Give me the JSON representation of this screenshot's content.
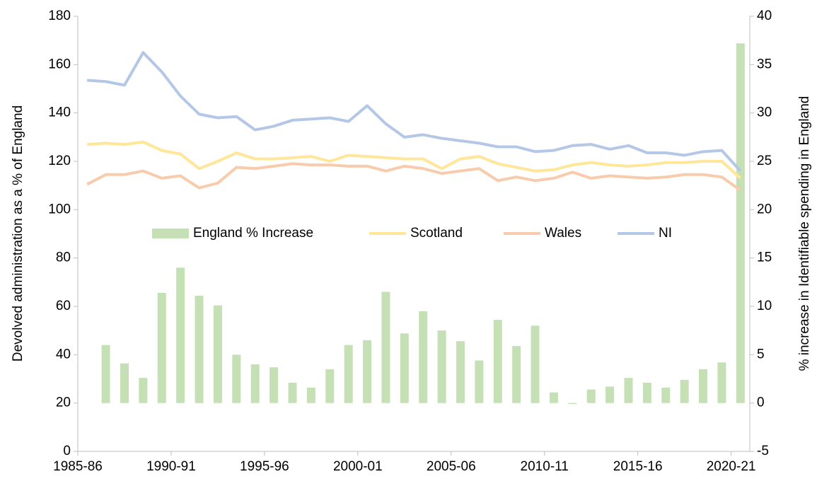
{
  "chart_data": {
    "type": "bar-line",
    "y_label": "Devolved administration as a % of England",
    "y2_label": "% increase in Identifiable spending in England",
    "categories": [
      "1985-86",
      null,
      null,
      null,
      null,
      "1990-91",
      null,
      null,
      null,
      null,
      "1995-96",
      null,
      null,
      null,
      null,
      "2000-01",
      null,
      null,
      null,
      null,
      "2005-06",
      null,
      null,
      null,
      null,
      "2010-11",
      null,
      null,
      null,
      null,
      "2015-16",
      null,
      null,
      null,
      null,
      "2020-21"
    ],
    "ylim": [
      0,
      180
    ],
    "yticks": [
      0,
      20,
      40,
      60,
      80,
      100,
      120,
      140,
      160,
      180
    ],
    "y2lim": [
      -5,
      40
    ],
    "y2ticks": [
      -5,
      0,
      5,
      10,
      15,
      20,
      25,
      30,
      35,
      40
    ],
    "legend": "center",
    "series": [
      {
        "name": "England % Increase",
        "type": "bar",
        "axis": "y2",
        "color": "#c5e0b4",
        "values": [
          null,
          6.0,
          4.1,
          2.6,
          11.4,
          14.0,
          11.1,
          10.1,
          5.0,
          4.0,
          3.7,
          2.1,
          1.6,
          3.5,
          6.0,
          6.5,
          11.5,
          7.2,
          9.5,
          7.5,
          6.4,
          4.4,
          8.6,
          5.9,
          8.0,
          1.1,
          -0.1,
          1.4,
          1.7,
          2.6,
          2.1,
          1.6,
          2.4,
          3.5,
          4.2,
          37.2
        ]
      },
      {
        "name": "Scotland",
        "type": "line",
        "color": "#ffe699",
        "values": [
          127,
          127.5,
          127,
          128,
          124.5,
          123,
          117,
          120,
          123.5,
          121,
          121,
          121.5,
          122,
          120,
          122.5,
          122,
          121.5,
          121,
          121,
          117,
          121,
          122,
          119,
          117.5,
          116,
          116.5,
          118.5,
          119.5,
          118.5,
          118,
          118.5,
          119.5,
          119.5,
          120,
          120,
          113
        ]
      },
      {
        "name": "Wales",
        "type": "line",
        "color": "#f8cbad",
        "values": [
          110.5,
          114.5,
          114.5,
          116,
          113,
          114,
          109,
          111,
          117.5,
          117,
          118,
          119,
          118.5,
          118.5,
          118,
          118,
          116,
          118,
          117,
          115,
          116,
          117,
          112,
          113.5,
          112,
          113,
          115.5,
          113,
          114,
          113.5,
          113,
          113.5,
          114.5,
          114.5,
          113.5,
          108
        ]
      },
      {
        "name": "NI",
        "type": "line",
        "color": "#b4c7e7",
        "values": [
          153.5,
          153,
          151.5,
          165,
          157,
          147,
          139.5,
          138,
          138.5,
          133,
          134.5,
          137,
          137.5,
          138,
          136.5,
          143,
          135.5,
          130,
          131,
          129.5,
          128.5,
          127.5,
          126,
          126,
          124,
          124.5,
          126.5,
          127,
          125,
          126.5,
          123.5,
          123.5,
          122.5,
          124,
          124.5,
          116
        ]
      }
    ]
  }
}
